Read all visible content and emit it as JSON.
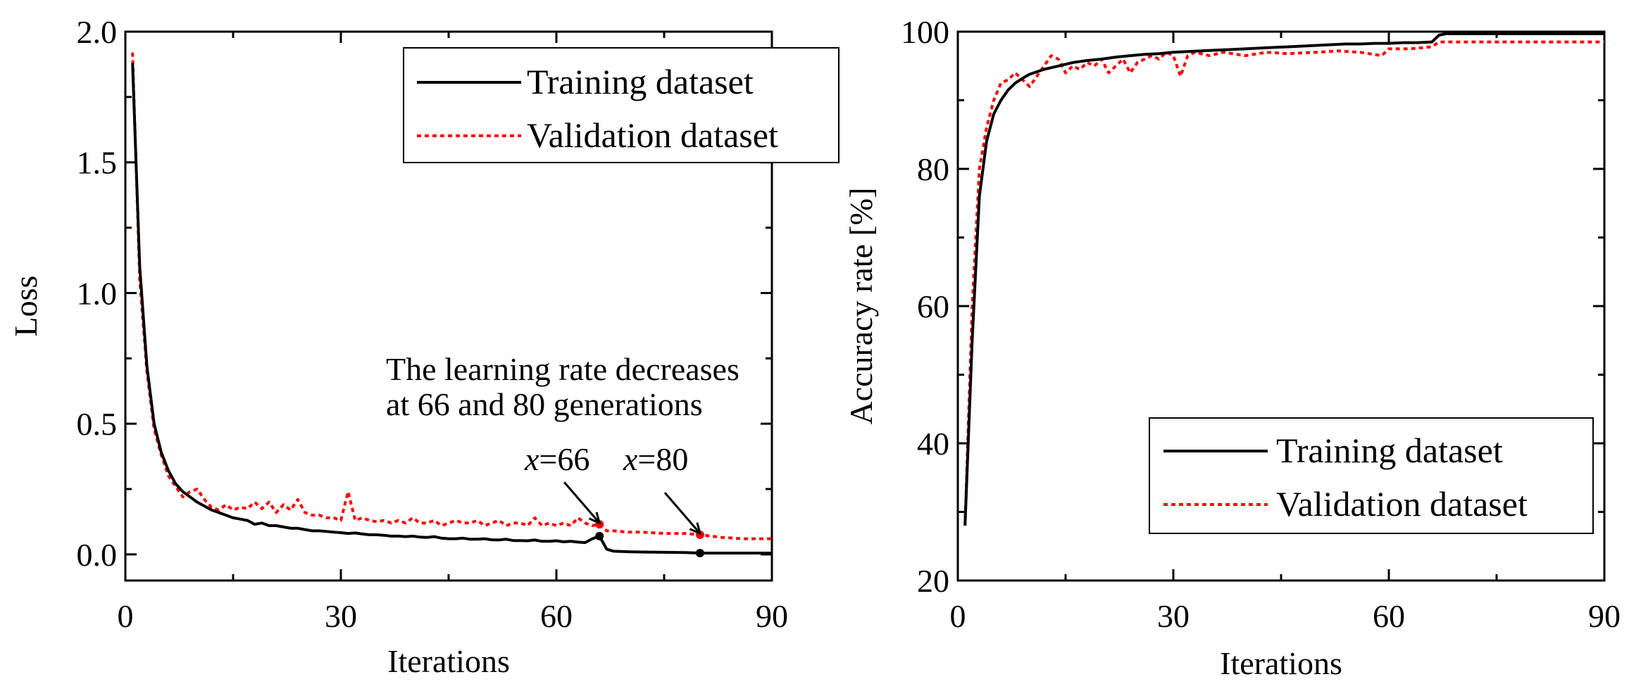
{
  "chart_data": [
    {
      "type": "line",
      "xlabel": "Iterations",
      "ylabel": "Loss",
      "xlim": [
        0,
        90
      ],
      "ylim": [
        -0.1,
        2.0
      ],
      "xticks": [
        0,
        30,
        60,
        90
      ],
      "yticks": [
        0.0,
        0.5,
        1.0,
        1.5,
        2.0
      ],
      "xtick_labels": [
        "0",
        "30",
        "60",
        "90"
      ],
      "ytick_labels": [
        "0.0",
        "0.5",
        "1.0",
        "1.5",
        "2.0"
      ],
      "legend_position": "top-right",
      "series": [
        {
          "name": "Training dataset",
          "color": "#000000",
          "style": "solid",
          "x": [
            1,
            2,
            3,
            4,
            5,
            6,
            7,
            8,
            9,
            10,
            11,
            12,
            13,
            14,
            15,
            16,
            17,
            18,
            19,
            20,
            21,
            22,
            23,
            24,
            25,
            26,
            27,
            28,
            29,
            30,
            31,
            32,
            33,
            34,
            35,
            36,
            37,
            38,
            39,
            40,
            41,
            42,
            43,
            44,
            45,
            46,
            47,
            48,
            49,
            50,
            51,
            52,
            53,
            54,
            55,
            56,
            57,
            58,
            59,
            60,
            61,
            62,
            63,
            64,
            65,
            66,
            67,
            68,
            70,
            72,
            75,
            78,
            80,
            83,
            86,
            90
          ],
          "values": [
            1.88,
            1.1,
            0.72,
            0.5,
            0.39,
            0.32,
            0.27,
            0.24,
            0.22,
            0.2,
            0.185,
            0.17,
            0.16,
            0.15,
            0.14,
            0.135,
            0.13,
            0.115,
            0.12,
            0.11,
            0.11,
            0.105,
            0.1,
            0.1,
            0.095,
            0.09,
            0.09,
            0.088,
            0.085,
            0.083,
            0.08,
            0.082,
            0.078,
            0.075,
            0.075,
            0.073,
            0.07,
            0.07,
            0.068,
            0.07,
            0.066,
            0.065,
            0.068,
            0.062,
            0.06,
            0.06,
            0.062,
            0.058,
            0.058,
            0.06,
            0.056,
            0.055,
            0.058,
            0.053,
            0.053,
            0.052,
            0.055,
            0.05,
            0.05,
            0.052,
            0.048,
            0.05,
            0.047,
            0.045,
            0.06,
            0.07,
            0.02,
            0.012,
            0.01,
            0.009,
            0.008,
            0.007,
            0.005,
            0.005,
            0.005,
            0.005
          ]
        },
        {
          "name": "Validation dataset",
          "color": "#ff0000",
          "style": "dotted",
          "x": [
            1,
            2,
            3,
            4,
            5,
            6,
            7,
            8,
            9,
            10,
            11,
            12,
            13,
            14,
            15,
            16,
            17,
            18,
            19,
            20,
            21,
            22,
            23,
            24,
            25,
            26,
            27,
            28,
            29,
            30,
            31,
            32,
            33,
            34,
            35,
            36,
            37,
            38,
            39,
            40,
            41,
            42,
            43,
            44,
            45,
            46,
            47,
            48,
            49,
            50,
            51,
            52,
            53,
            54,
            55,
            56,
            57,
            58,
            59,
            60,
            61,
            62,
            63,
            64,
            65,
            66,
            67,
            68,
            70,
            72,
            75,
            78,
            80,
            83,
            86,
            90
          ],
          "values": [
            1.92,
            1.05,
            0.7,
            0.48,
            0.38,
            0.3,
            0.26,
            0.22,
            0.24,
            0.25,
            0.21,
            0.18,
            0.17,
            0.19,
            0.17,
            0.18,
            0.175,
            0.2,
            0.175,
            0.2,
            0.16,
            0.19,
            0.17,
            0.21,
            0.16,
            0.15,
            0.15,
            0.14,
            0.14,
            0.13,
            0.24,
            0.13,
            0.14,
            0.13,
            0.125,
            0.13,
            0.12,
            0.13,
            0.12,
            0.14,
            0.12,
            0.12,
            0.13,
            0.11,
            0.12,
            0.13,
            0.12,
            0.12,
            0.13,
            0.11,
            0.12,
            0.13,
            0.11,
            0.12,
            0.12,
            0.11,
            0.14,
            0.11,
            0.12,
            0.11,
            0.12,
            0.11,
            0.14,
            0.12,
            0.11,
            0.115,
            0.09,
            0.09,
            0.085,
            0.085,
            0.08,
            0.08,
            0.075,
            0.065,
            0.06,
            0.06
          ]
        }
      ],
      "markers": [
        {
          "x": 66,
          "y": 0.115,
          "color": "#ff0000"
        },
        {
          "x": 80,
          "y": 0.075,
          "color": "#ff0000"
        },
        {
          "x": 66,
          "y": 0.07,
          "color": "#000000"
        },
        {
          "x": 80,
          "y": 0.005,
          "color": "#000000"
        }
      ],
      "annotations": [
        {
          "text": "The learning rate decreases",
          "at": [
            58.7,
            0.7
          ]
        },
        {
          "text": "at 66 and 80 generations",
          "at": [
            58.7,
            0.56
          ]
        },
        {
          "label_italic": "x",
          "label_rest": "=66",
          "at": [
            62,
            0.33
          ],
          "arrow_to": [
            66,
            0.12
          ]
        },
        {
          "label_italic": "x",
          "label_rest": "=80",
          "at": [
            75.6,
            0.33
          ],
          "arrow_to": [
            80,
            0.08
          ]
        }
      ]
    },
    {
      "type": "line",
      "xlabel": "Iterations",
      "ylabel": "Accuracy rate [%]",
      "xlim": [
        0,
        90
      ],
      "ylim": [
        20,
        100
      ],
      "xticks": [
        0,
        30,
        60,
        90
      ],
      "yticks": [
        20,
        40,
        60,
        80,
        100
      ],
      "xtick_labels": [
        "0",
        "30",
        "60",
        "90"
      ],
      "ytick_labels": [
        "20",
        "40",
        "60",
        "80",
        "100"
      ],
      "legend_position": "lower-right",
      "series": [
        {
          "name": "Training dataset",
          "color": "#000000",
          "style": "solid",
          "x": [
            1,
            2,
            3,
            4,
            5,
            6,
            7,
            8,
            9,
            10,
            12,
            14,
            16,
            18,
            20,
            22,
            24,
            26,
            28,
            30,
            32,
            34,
            36,
            38,
            40,
            42,
            44,
            46,
            48,
            50,
            52,
            54,
            56,
            58,
            60,
            62,
            64,
            66,
            67,
            68,
            70,
            75,
            80,
            85,
            90
          ],
          "values": [
            28,
            55,
            76,
            84,
            88,
            90,
            91.5,
            92.5,
            93.2,
            93.8,
            94.5,
            95,
            95.5,
            95.8,
            96,
            96.3,
            96.5,
            96.7,
            96.8,
            97,
            97.1,
            97.2,
            97.3,
            97.4,
            97.5,
            97.6,
            97.7,
            97.8,
            97.9,
            98,
            98.1,
            98.2,
            98.2,
            98.3,
            98.3,
            98.4,
            98.4,
            98.5,
            99.5,
            99.7,
            99.7,
            99.7,
            99.7,
            99.7,
            99.7
          ]
        },
        {
          "name": "Validation dataset",
          "color": "#ff0000",
          "style": "dotted",
          "x": [
            1,
            2,
            3,
            4,
            5,
            6,
            7,
            8,
            9,
            10,
            11,
            12,
            13,
            14,
            15,
            16,
            17,
            18,
            19,
            20,
            21,
            22,
            23,
            24,
            25,
            26,
            27,
            28,
            29,
            30,
            31,
            32,
            33,
            35,
            37,
            40,
            43,
            46,
            50,
            53,
            56,
            59,
            60,
            63,
            66,
            67,
            70,
            75,
            80,
            85,
            90
          ],
          "values": [
            28,
            60,
            80,
            86,
            90,
            92.5,
            93,
            94,
            93,
            92,
            93.5,
            95,
            96.5,
            96,
            94,
            95,
            94.5,
            95.5,
            95,
            96,
            94,
            95,
            96,
            94,
            95.5,
            96,
            96.5,
            96,
            97,
            96.5,
            93.5,
            96.5,
            97,
            96.5,
            97,
            96.5,
            97,
            96.8,
            97,
            97.2,
            97,
            96.5,
            97.5,
            97.5,
            97.8,
            98.5,
            98.5,
            98.5,
            98.5,
            98.5,
            98.5
          ]
        }
      ]
    }
  ]
}
